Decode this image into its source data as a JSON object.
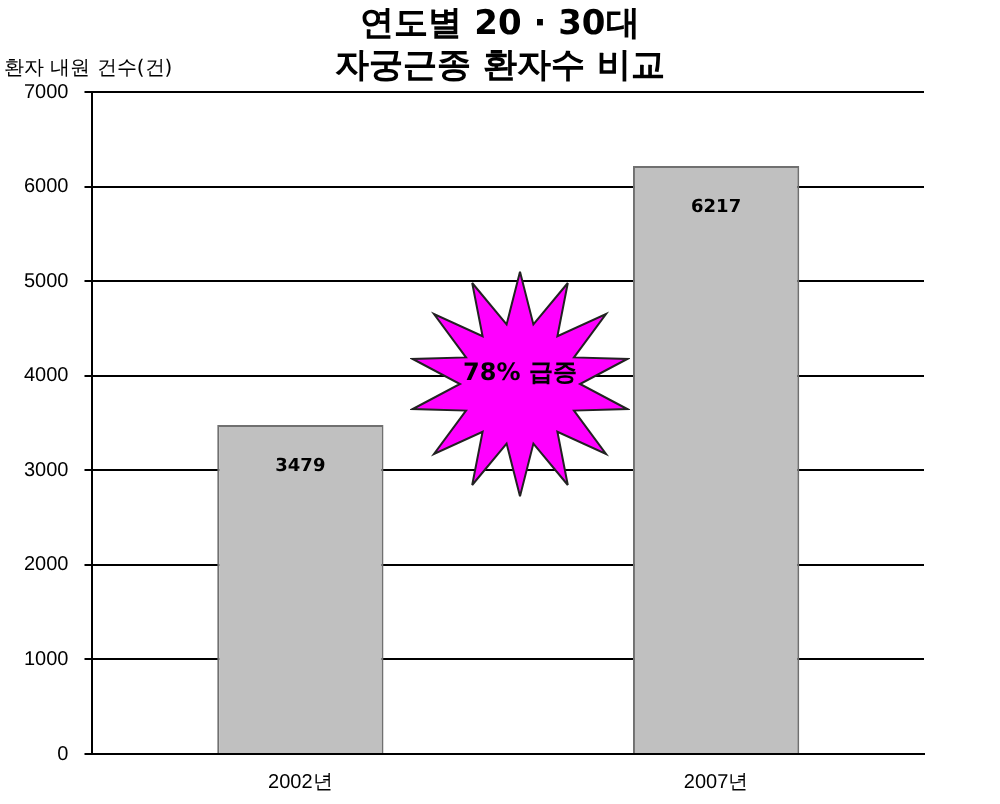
{
  "chart_data": {
    "type": "bar",
    "title": "연도별 20 · 30대\n자궁근종 환자수 비교",
    "ylabel": "환자 내원 건수(건)",
    "categories": [
      "2002년",
      "2007년"
    ],
    "values": [
      3479,
      6217
    ],
    "color": "#c0c0c0",
    "ylim": [
      0,
      7000
    ],
    "yticks": [
      0,
      1000,
      2000,
      3000,
      4000,
      5000,
      6000,
      7000
    ],
    "grid": "y",
    "data_labels": true,
    "legend": false,
    "annotations": [
      "78% 급증"
    ]
  }
}
